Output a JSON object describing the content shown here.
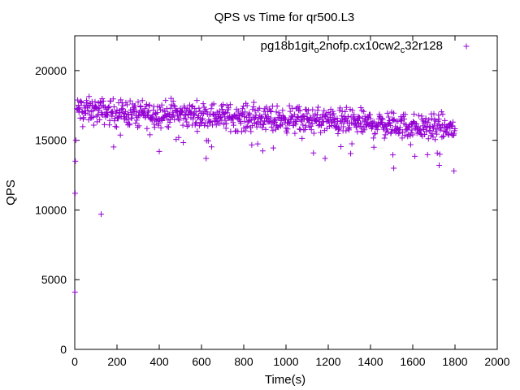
{
  "chart_data": {
    "type": "scatter",
    "title": "QPS vs Time for qr500.L3",
    "xlabel": "Time(s)",
    "ylabel": "QPS",
    "xlim": [
      0,
      2000
    ],
    "ylim": [
      0,
      22500
    ],
    "xticks": [
      0,
      200,
      400,
      600,
      800,
      1000,
      1200,
      1400,
      1600,
      1800,
      2000
    ],
    "yticks": [
      0,
      5000,
      10000,
      15000,
      20000
    ],
    "grid": false,
    "legend_position": "top-right",
    "marker": "+",
    "color": "#9400d3",
    "series": [
      {
        "name_parts": [
          {
            "text": "pg18b1git",
            "sub": false
          },
          {
            "text": "o",
            "sub": true
          },
          {
            "text": "2nofp.cx10cw2",
            "sub": false
          },
          {
            "text": "c",
            "sub": true
          },
          {
            "text": "32r128",
            "sub": false
          }
        ],
        "outliers": [
          {
            "x": 1,
            "y": 4100
          },
          {
            "x": 2,
            "y": 11200
          },
          {
            "x": 3,
            "y": 13500
          },
          {
            "x": 5,
            "y": 15000
          },
          {
            "x": 125,
            "y": 9700
          },
          {
            "x": 1510,
            "y": 13000
          },
          {
            "x": 1795,
            "y": 12800
          },
          {
            "x": 1185,
            "y": 13700
          },
          {
            "x": 400,
            "y": 14200
          },
          {
            "x": 1725,
            "y": 13200
          }
        ],
        "band": {
          "x_start": 10,
          "x_end": 1800,
          "step": 2,
          "center": [
            [
              0,
              17200
            ],
            [
              200,
              17000
            ],
            [
              400,
              16900
            ],
            [
              600,
              16800
            ],
            [
              800,
              16600
            ],
            [
              1000,
              16500
            ],
            [
              1200,
              16400
            ],
            [
              1400,
              16200
            ],
            [
              1600,
              16000
            ],
            [
              1800,
              15800
            ]
          ],
          "spread": 850
        }
      }
    ]
  }
}
